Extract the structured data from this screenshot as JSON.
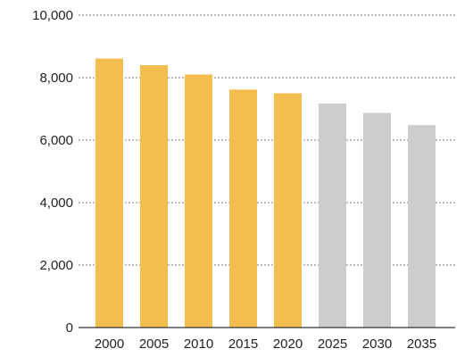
{
  "chart_data": {
    "type": "bar",
    "categories": [
      "2000",
      "2005",
      "2010",
      "2015",
      "2020",
      "2025",
      "2030",
      "2035"
    ],
    "values": [
      8610,
      8400,
      8100,
      7620,
      7500,
      7170,
      6870,
      6480
    ],
    "bar_kinds": [
      "actual",
      "actual",
      "actual",
      "actual",
      "actual",
      "projected",
      "projected",
      "projected"
    ],
    "colors": {
      "actual": "#f4be4e",
      "projected": "#cccccc",
      "grid": "#7a7a7a",
      "axis": "#333333"
    },
    "ylim": [
      0,
      10000
    ],
    "yticks": [
      0,
      2000,
      4000,
      6000,
      8000,
      10000
    ],
    "ytick_labels": [
      "0",
      "2,000",
      "4,000",
      "6,000",
      "8,000",
      "10,000"
    ],
    "grid": true,
    "grid_style": "dotted",
    "title": "",
    "xlabel": "",
    "ylabel": ""
  }
}
